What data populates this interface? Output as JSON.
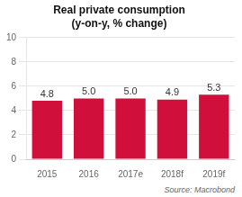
{
  "chart_data": {
    "type": "bar",
    "title": "Real private consumption",
    "subtitle": "(y-on-y, % change)",
    "categories": [
      "2015",
      "2016",
      "2017e",
      "2018f",
      "2019f"
    ],
    "values": [
      4.8,
      5.0,
      5.0,
      4.9,
      5.3
    ],
    "value_labels": [
      "4.8",
      "5.0",
      "5.0",
      "4.9",
      "5.3"
    ],
    "color": "#d0103a",
    "ylim": [
      0,
      10
    ],
    "yticks": [
      0,
      2,
      4,
      6,
      8,
      10
    ],
    "grid": true,
    "data_labels": true,
    "annotations": [
      "Source: Macrobond"
    ]
  }
}
